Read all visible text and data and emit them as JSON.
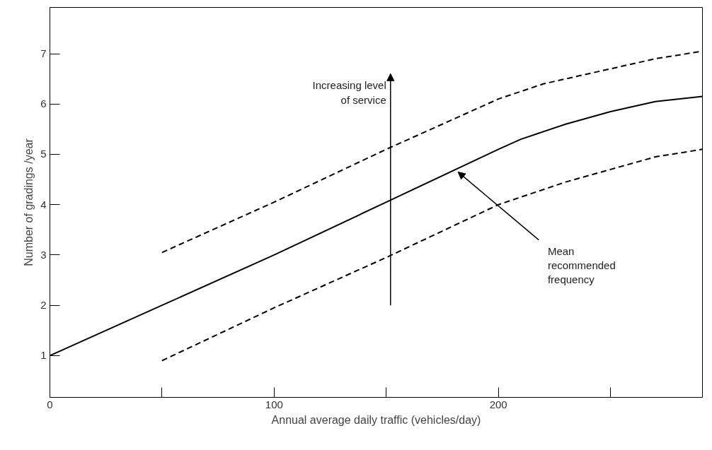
{
  "chart_data": {
    "type": "line",
    "xlabel": "Annual average daily traffic (vehicles/day)",
    "ylabel": "Number of gradings /year",
    "xlim": [
      0,
      291
    ],
    "ylim": [
      0.17,
      7.92
    ],
    "xticks": [
      0,
      {
        "value": 50,
        "label": null
      },
      100,
      {
        "value": 150,
        "label": null
      },
      200,
      {
        "value": 250,
        "label": null
      }
    ],
    "yticks": [
      1,
      2,
      3,
      4,
      5,
      6,
      7
    ],
    "grid": false,
    "marker": "none",
    "series": [
      {
        "color": "#000000",
        "line_style": "dashed",
        "x": [
          50,
          100,
          150,
          200,
          220,
          250,
          270,
          291
        ],
        "values": [
          3.05,
          4.05,
          5.1,
          6.1,
          6.4,
          6.7,
          6.9,
          7.05
        ]
      },
      {
        "color": "#000000",
        "line_style": "solid",
        "x": [
          0,
          50,
          100,
          150,
          200,
          210,
          230,
          250,
          270,
          291
        ],
        "values": [
          1,
          2,
          3,
          4.05,
          5.1,
          5.3,
          5.6,
          5.85,
          6.05,
          6.15
        ]
      },
      {
        "color": "#000000",
        "line_style": "dashed",
        "x": [
          50,
          100,
          150,
          200,
          230,
          250,
          270,
          291
        ],
        "values": [
          0.9,
          1.95,
          2.95,
          4.0,
          4.45,
          4.7,
          4.95,
          5.1
        ]
      }
    ],
    "annotations": [
      "Increasing level\nof service",
      {
        "text": "Mean\nrecommended\nfrequency",
        "x": 182,
        "y": 4.65
      }
    ]
  }
}
